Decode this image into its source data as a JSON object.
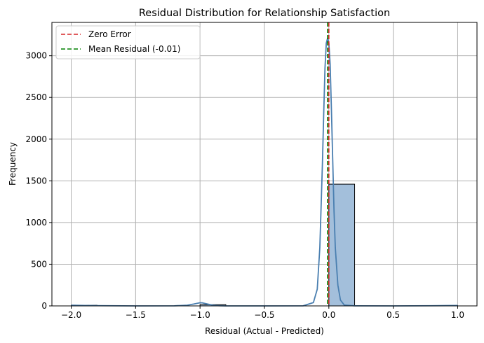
{
  "chart_data": {
    "type": "bar",
    "title": "Residual Distribution for Relationship Satisfaction",
    "xlabel": "Residual (Actual - Predicted)",
    "ylabel": "Frequency",
    "xlim": [
      -2.15,
      1.15
    ],
    "ylim": [
      0,
      3400
    ],
    "xticks": [
      -2.0,
      -1.5,
      -1.0,
      -0.5,
      0.0,
      0.5,
      1.0
    ],
    "xtick_labels": [
      "−2.0",
      "−1.5",
      "−1.0",
      "−0.5",
      "0.0",
      "0.5",
      "1.0"
    ],
    "yticks": [
      0,
      500,
      1000,
      1500,
      2000,
      2500,
      3000
    ],
    "ytick_labels": [
      "0",
      "500",
      "1000",
      "1500",
      "2000",
      "2500",
      "3000"
    ],
    "grid": true,
    "legend_position": "top-left",
    "histogram": {
      "bins": [
        {
          "x0": -2.0,
          "x1": -1.8,
          "count": 8
        },
        {
          "x0": -1.0,
          "x1": -0.8,
          "count": 15
        },
        {
          "x0": 0.0,
          "x1": 0.2,
          "count": 1460
        },
        {
          "x0": 0.8,
          "x1": 1.0,
          "count": 3
        }
      ],
      "color": "#a3bfdb",
      "edge_color": "#000000"
    },
    "kde": {
      "color": "#4a7fb0",
      "x": [
        -2.0,
        -1.8,
        -1.5,
        -1.2,
        -1.1,
        -1.05,
        -1.0,
        -0.98,
        -0.95,
        -0.9,
        -0.85,
        -0.8,
        -0.5,
        -0.2,
        -0.12,
        -0.09,
        -0.07,
        -0.05,
        -0.04,
        -0.03,
        -0.02,
        -0.01,
        0.0,
        0.01,
        0.02,
        0.03,
        0.04,
        0.05,
        0.07,
        0.09,
        0.12,
        0.2,
        0.5,
        0.8,
        1.0
      ],
      "y": [
        8,
        3,
        0,
        1,
        8,
        22,
        38,
        36,
        25,
        8,
        2,
        0,
        0,
        1,
        40,
        200,
        700,
        1700,
        2300,
        2850,
        3150,
        3210,
        3150,
        2900,
        2350,
        1750,
        1150,
        700,
        250,
        70,
        10,
        1,
        0,
        2,
        5
      ]
    },
    "reference_lines": [
      {
        "name": "Zero Error",
        "x": 0.0,
        "color": "#d62728",
        "style": "dashed"
      },
      {
        "name": "Mean Residual (-0.01)",
        "x": -0.01,
        "color": "#008000",
        "style": "dashed"
      }
    ]
  }
}
